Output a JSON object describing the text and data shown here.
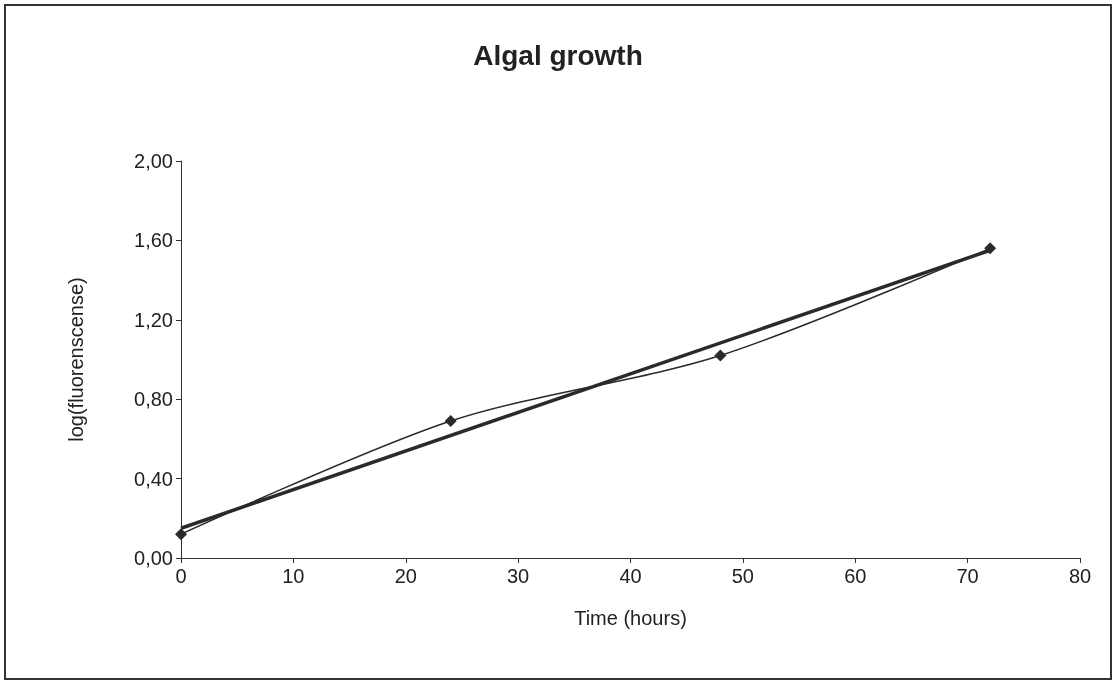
{
  "chart_data": {
    "type": "line",
    "title": "Algal growth",
    "xlabel": "Time (hours)",
    "ylabel": "log(fluorenscense)",
    "x": [
      0,
      24,
      48,
      72
    ],
    "series": [
      {
        "color": "#2a2a2a",
        "values": [
          0.12,
          0.69,
          1.02,
          1.56
        ],
        "marker": "diamond"
      },
      {
        "type": "line",
        "x": [
          0,
          72
        ],
        "values": [
          0.15,
          1.55
        ],
        "color": "#2a2a2a",
        "marker": "none"
      }
    ],
    "xlim": [
      0,
      80
    ],
    "xticks": [
      0,
      10,
      20,
      30,
      40,
      50,
      60,
      70,
      80
    ],
    "ylim": [
      0,
      2
    ],
    "yticks": [
      {
        "value": 0,
        "label": "0,00"
      },
      {
        "value": 0.4,
        "label": "0,40"
      },
      {
        "value": 0.8,
        "label": "0,80"
      },
      {
        "value": 1.2,
        "label": "1,20"
      },
      {
        "value": 1.6,
        "label": "1,60"
      },
      {
        "value": 2,
        "label": "2,00"
      }
    ],
    "grid": false,
    "line_style": "solid"
  }
}
